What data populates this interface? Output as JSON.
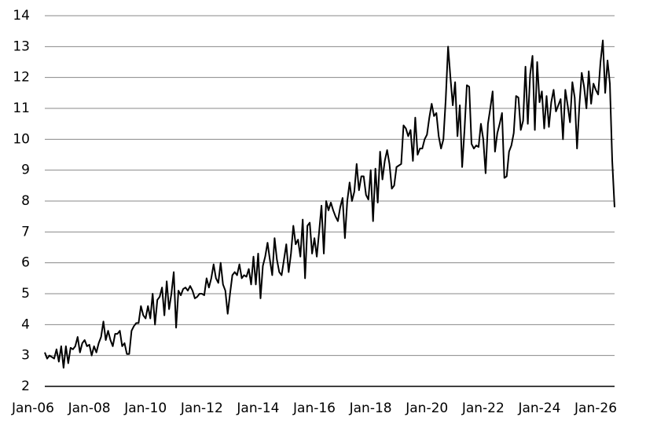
{
  "chart_data": {
    "type": "line",
    "categories": [
      "Jan-06",
      null,
      null,
      null,
      null,
      null,
      null,
      null,
      null,
      null,
      null,
      null,
      null,
      null,
      null,
      null,
      null,
      null,
      null,
      null,
      null,
      null,
      null,
      null,
      "Jan-08",
      null,
      null,
      null,
      null,
      null,
      null,
      null,
      null,
      null,
      null,
      null,
      null,
      null,
      null,
      null,
      null,
      null,
      null,
      null,
      null,
      null,
      null,
      null,
      "Jan-10",
      null,
      null,
      null,
      null,
      null,
      null,
      null,
      null,
      null,
      null,
      null,
      null,
      null,
      null,
      null,
      null,
      null,
      null,
      null,
      null,
      null,
      null,
      null,
      "Jan-12",
      null,
      null,
      null,
      null,
      null,
      null,
      null,
      null,
      null,
      null,
      null,
      null,
      null,
      null,
      null,
      null,
      null,
      null,
      null,
      null,
      null,
      null,
      null,
      "Jan-14",
      null,
      null,
      null,
      null,
      null,
      null,
      null,
      null,
      null,
      null,
      null,
      null,
      null,
      null,
      null,
      null,
      null,
      null,
      null,
      null,
      null,
      null,
      null,
      "Jan-16",
      null,
      null,
      null,
      null,
      null,
      null,
      null,
      null,
      null,
      null,
      null,
      null,
      null,
      null,
      null,
      null,
      null,
      null,
      null,
      null,
      null,
      null,
      null,
      "Jan-18",
      null,
      null,
      null,
      null,
      null,
      null,
      null,
      null,
      null,
      null,
      null,
      null,
      null,
      null,
      null,
      null,
      null,
      null,
      null,
      null,
      null,
      null,
      null,
      "Jan-20",
      null,
      null,
      null,
      null,
      null,
      null,
      null,
      null,
      null,
      null,
      null,
      null,
      null,
      null,
      null,
      null,
      null,
      null,
      null,
      null,
      null,
      null,
      null,
      "Jan-22",
      null,
      null,
      null,
      null,
      null,
      null,
      null,
      null,
      null,
      null,
      null,
      null,
      null,
      null,
      null,
      null,
      null,
      null,
      null,
      null,
      null,
      null,
      null,
      "Jan-24",
      null,
      null,
      null,
      null,
      null,
      null,
      null,
      null,
      null,
      null,
      null,
      null,
      null,
      null,
      null,
      null,
      null,
      null,
      null,
      null,
      null,
      null,
      null,
      "Jan-26",
      null,
      null,
      null
    ],
    "values": [
      3.1,
      2.9,
      3.0,
      2.95,
      2.9,
      3.2,
      2.8,
      3.3,
      2.6,
      3.3,
      2.75,
      3.25,
      3.2,
      3.3,
      3.6,
      3.1,
      3.4,
      3.5,
      3.3,
      3.35,
      3.0,
      3.3,
      3.1,
      3.4,
      3.6,
      4.1,
      3.5,
      3.8,
      3.5,
      3.3,
      3.7,
      3.7,
      3.8,
      3.3,
      3.4,
      3.05,
      3.05,
      3.8,
      3.95,
      4.05,
      4.05,
      4.6,
      4.3,
      4.2,
      4.6,
      4.2,
      5.0,
      4.0,
      4.8,
      4.9,
      5.2,
      4.3,
      5.4,
      4.5,
      5.0,
      5.7,
      3.9,
      5.1,
      4.95,
      5.15,
      5.2,
      5.1,
      5.25,
      5.1,
      4.85,
      4.9,
      5.0,
      5.0,
      4.95,
      5.5,
      5.2,
      5.5,
      5.95,
      5.5,
      5.35,
      6.0,
      5.3,
      5.1,
      4.35,
      5.0,
      5.6,
      5.7,
      5.6,
      5.95,
      5.5,
      5.6,
      5.55,
      5.8,
      5.3,
      6.2,
      5.3,
      6.3,
      4.85,
      5.9,
      6.2,
      6.65,
      6.1,
      5.6,
      6.8,
      6.1,
      5.7,
      5.6,
      6.1,
      6.6,
      5.7,
      6.3,
      7.2,
      6.6,
      6.75,
      6.2,
      7.4,
      5.5,
      7.2,
      7.3,
      6.3,
      6.8,
      6.2,
      7.0,
      7.85,
      6.3,
      8.0,
      7.7,
      7.95,
      7.7,
      7.5,
      7.35,
      7.8,
      8.1,
      6.8,
      8.0,
      8.6,
      8.0,
      8.3,
      9.2,
      8.35,
      8.8,
      8.8,
      8.2,
      8.05,
      9.0,
      7.35,
      9.05,
      7.95,
      9.6,
      8.7,
      9.3,
      9.65,
      9.2,
      8.4,
      8.5,
      9.1,
      9.15,
      9.2,
      10.45,
      10.35,
      10.1,
      10.3,
      9.3,
      10.7,
      9.5,
      9.7,
      9.7,
      10.0,
      10.15,
      10.7,
      11.15,
      10.75,
      10.85,
      10.1,
      9.7,
      10.0,
      11.3,
      13.0,
      12.0,
      11.1,
      11.85,
      10.1,
      11.1,
      9.1,
      10.3,
      11.75,
      11.7,
      9.85,
      9.7,
      9.8,
      9.75,
      10.5,
      10.0,
      8.9,
      10.5,
      11.0,
      11.55,
      9.6,
      10.2,
      10.5,
      10.85,
      8.75,
      8.8,
      9.6,
      9.8,
      10.2,
      11.4,
      11.35,
      10.3,
      10.6,
      12.35,
      10.5,
      12.1,
      12.7,
      10.3,
      12.5,
      11.2,
      11.55,
      10.35,
      11.4,
      10.4,
      11.2,
      11.6,
      10.9,
      11.1,
      11.3,
      10.0,
      11.6,
      11.1,
      10.55,
      11.85,
      11.35,
      9.7,
      11.1,
      12.15,
      11.7,
      11.0,
      12.2,
      11.15,
      11.8,
      11.6,
      11.45,
      12.5,
      13.2,
      11.5,
      12.55,
      11.8,
      9.3,
      7.8
    ],
    "color": "#000000",
    "ylim": [
      2,
      14
    ],
    "yticks": [
      2,
      3,
      4,
      5,
      6,
      7,
      8,
      9,
      10,
      11,
      12,
      13,
      14
    ],
    "grid": true
  }
}
